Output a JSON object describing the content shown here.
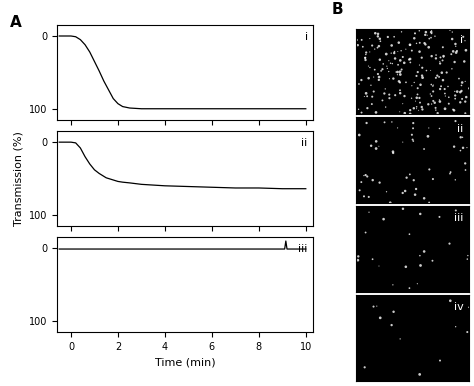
{
  "panel_labels": [
    "A",
    "B"
  ],
  "images": {
    "labels": [
      "i",
      "ii",
      "iii",
      "iv"
    ]
  },
  "chart_data": [
    {
      "type": "line",
      "title": "i",
      "color": "#000000",
      "tick_labels": "y",
      "x": [
        -0.5,
        0,
        0.2,
        0.4,
        0.6,
        0.8,
        1.0,
        1.2,
        1.4,
        1.5,
        1.6,
        1.7,
        1.8,
        2.0,
        2.2,
        2.5,
        3,
        4,
        5,
        6,
        7,
        8,
        9,
        10
      ],
      "values": [
        0,
        0,
        1,
        5,
        12,
        22,
        35,
        48,
        62,
        68,
        74,
        80,
        86,
        93,
        97,
        99,
        100,
        100,
        100,
        100,
        100,
        100,
        100,
        100
      ],
      "xlim": [
        -0.6,
        10.3
      ],
      "xticks": [
        0,
        2,
        4,
        6,
        8,
        10
      ],
      "ylim": [
        115,
        -15
      ],
      "yticks": [
        0,
        100
      ]
    },
    {
      "type": "line",
      "title": "ii",
      "color": "#000000",
      "tick_labels": "y",
      "y_label": "Transmission (%)",
      "x": [
        -0.5,
        0,
        0.2,
        0.4,
        0.6,
        0.8,
        1.0,
        1.2,
        1.4,
        1.5,
        1.6,
        1.7,
        1.8,
        2.0,
        2.2,
        2.5,
        3,
        4,
        5,
        6,
        7,
        8,
        9,
        10
      ],
      "values": [
        0,
        0,
        1,
        8,
        20,
        30,
        38,
        43,
        47,
        49,
        50,
        51,
        52,
        54,
        55,
        56,
        58,
        60,
        61,
        62,
        63,
        63,
        64,
        64
      ],
      "xlim": [
        -0.6,
        10.3
      ],
      "xticks": [
        0,
        2,
        4,
        6,
        8,
        10
      ],
      "ylim": [
        115,
        -15
      ],
      "yticks": [
        0,
        100
      ]
    },
    {
      "type": "line",
      "title": "iii",
      "color": "#000000",
      "x_label": "Time (min)",
      "x": [
        -0.5,
        0,
        2,
        4,
        6,
        8,
        9.1,
        9.15,
        9.2,
        10
      ],
      "values": [
        1,
        1,
        1,
        1,
        1,
        1,
        1,
        -10,
        1,
        1
      ],
      "xlim": [
        -0.6,
        10.3
      ],
      "xticks": [
        0,
        2,
        4,
        6,
        8,
        10
      ],
      "ylim": [
        115,
        -15
      ],
      "yticks": [
        0,
        100
      ]
    }
  ]
}
